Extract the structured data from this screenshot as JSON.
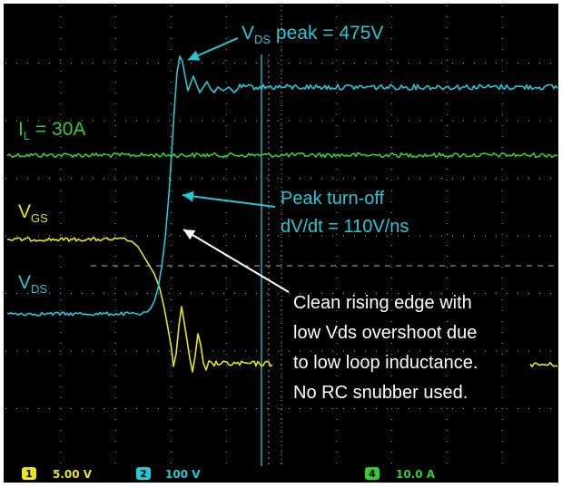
{
  "chart_data": {
    "type": "line",
    "title": "",
    "xlabel": "",
    "ylabel": "",
    "grid": true,
    "colors": {
      "background": "#000000",
      "grid": "#8a8a8a",
      "vgs": "#e6e61e",
      "vds": "#25c9d6",
      "il": "#33cc33",
      "annotation_white": "#ffffff"
    },
    "series": [
      {
        "name": "VGS",
        "channel": "1",
        "color": "#e6e61e"
      },
      {
        "name": "VDS",
        "channel": "2",
        "color": "#25c9d6"
      },
      {
        "name": "IL",
        "channel": "4",
        "color": "#33cc33"
      }
    ],
    "annotations": {
      "vds_peak": "V<sub>DS</sub> peak = 475V",
      "il_label": "I<sub>L</sub> = 30A",
      "vgs_label": "V<sub>GS</sub>",
      "vds_label": "V<sub>DS</sub>",
      "dvdt_line1": "Peak turn-off",
      "dvdt_line2": "dV/dt = 110V/ns",
      "note_line1": "Clean rising edge with",
      "note_line2": "low Vds overshoot due",
      "note_line3": "to low loop inductance.",
      "note_line4": "No RC snubber used."
    },
    "channel_bar": {
      "ch1_num": "1",
      "ch1_scale": "5.00 V",
      "ch2_num": "2",
      "ch2_scale": "100 V",
      "ch4_num": "4",
      "ch4_scale": "10.0 A"
    }
  }
}
